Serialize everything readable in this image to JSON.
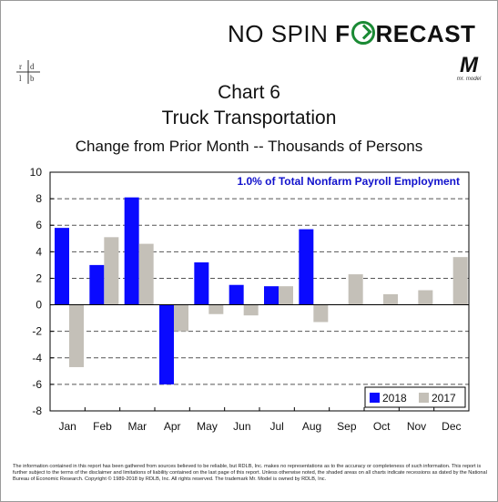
{
  "brand": {
    "part1": "NO SPIN ",
    "part2_pre": "F",
    "part2_post": "RECAST",
    "logo_left": "rd|lb",
    "logo_right": "M",
    "logo_right_sub": "mr. model"
  },
  "titles": {
    "chart_number": "Chart 6",
    "title": "Truck Transportation",
    "subtitle": "Change from Prior Month -- Thousands of Persons"
  },
  "chart_data": {
    "type": "bar",
    "categories": [
      "Jan",
      "Feb",
      "Mar",
      "Apr",
      "May",
      "Jun",
      "Jul",
      "Aug",
      "Sep",
      "Oct",
      "Nov",
      "Dec"
    ],
    "series": [
      {
        "name": "2018",
        "color": "#0a0aff",
        "values": [
          5.8,
          3.0,
          8.1,
          -6.0,
          3.2,
          1.5,
          1.4,
          5.7,
          null,
          null,
          null,
          null
        ]
      },
      {
        "name": "2017",
        "color": "#c4c0b8",
        "values": [
          -4.7,
          5.1,
          4.6,
          -2.0,
          -0.7,
          -0.8,
          1.4,
          -1.3,
          2.3,
          0.8,
          1.1,
          3.6
        ]
      }
    ],
    "ylim": [
      -8,
      10
    ],
    "yticks": [
      -8,
      -6,
      -4,
      -2,
      0,
      2,
      4,
      6,
      8,
      10
    ],
    "annotation": "1.0% of Total Nonfarm Payroll Employment",
    "annotation_color": "#1111cc",
    "grid": true,
    "legend_position": "bottom-right"
  },
  "footer": "The information contained in this report has been gathered from sources believed to be reliable, but RDLB, Inc. makes no representations as to the accuracy or completeness of such information. This report is further subject to the terms of the disclaimer and limitations of liability contained on the last page of this report. Unless otherwise noted, the shaded areas on all charts indicate recessions as dated by the National Bureau of Economic Research. Copyright © 1989-2018 by RDLB, Inc. All rights reserved. The trademark Mr. Model is owned by RDLB, Inc."
}
